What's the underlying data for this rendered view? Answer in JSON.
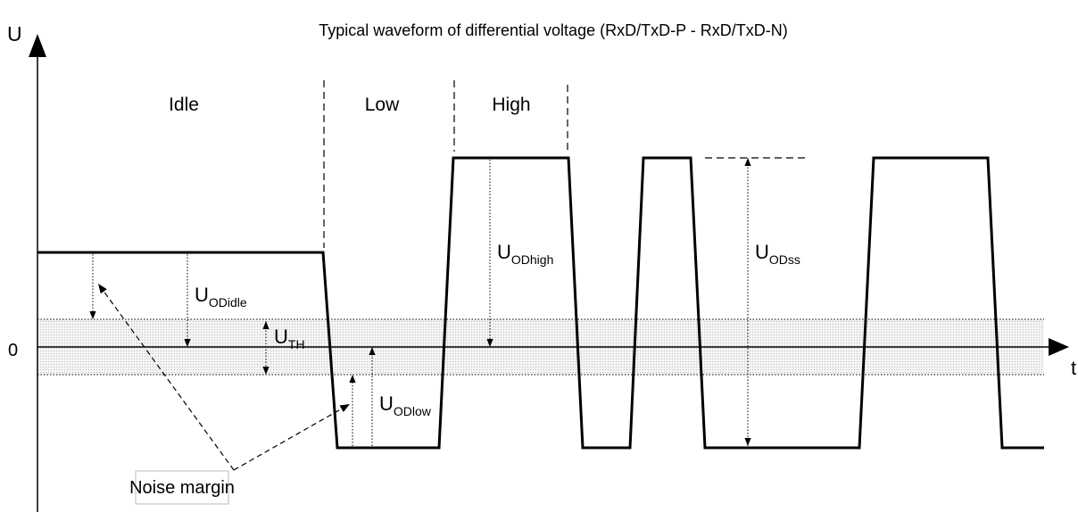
{
  "title": "Typical waveform of differential voltage  (RxD/TxD-P - RxD/TxD-N)",
  "axes": {
    "y_label": "U",
    "x_label": "t",
    "zero_label": "0"
  },
  "regions": [
    "Idle",
    "Low",
    "High"
  ],
  "quantities": [
    {
      "symbol": "U",
      "subscript": "ODidle"
    },
    {
      "symbol": "U",
      "subscript": "TH"
    },
    {
      "symbol": "U",
      "subscript": "ODlow"
    },
    {
      "symbol": "U",
      "subscript": "ODhigh"
    },
    {
      "symbol": "U",
      "subscript": "ODss"
    }
  ],
  "note": "Noise margin"
}
